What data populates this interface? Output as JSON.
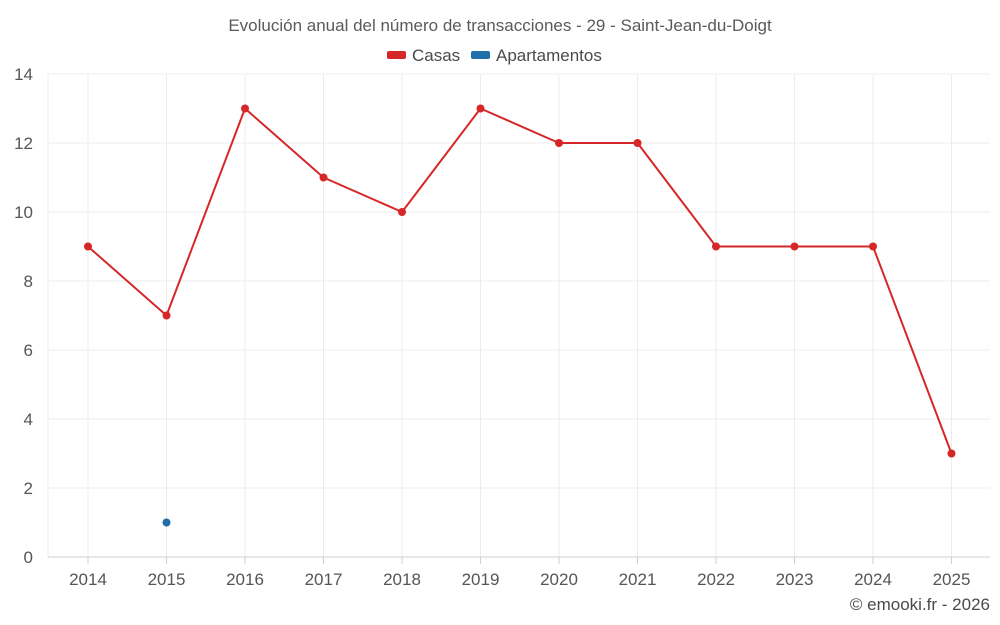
{
  "chart_data": {
    "type": "line",
    "title": "Evolución anual del número de transacciones - 29 - Saint-Jean-du-Doigt",
    "categories": [
      "2014",
      "2015",
      "2016",
      "2017",
      "2018",
      "2019",
      "2020",
      "2021",
      "2022",
      "2023",
      "2024",
      "2025"
    ],
    "series": [
      {
        "name": "Casas",
        "color": "#d62728",
        "values": [
          9,
          7,
          13,
          11,
          10,
          13,
          12,
          12,
          9,
          9,
          9,
          3
        ]
      },
      {
        "name": "Apartamentos",
        "color": "#1f6fa8",
        "values": [
          null,
          1,
          null,
          null,
          null,
          null,
          null,
          null,
          null,
          null,
          null,
          null
        ]
      }
    ],
    "yticks": [
      "0",
      "2",
      "4",
      "6",
      "8",
      "10",
      "12",
      "14"
    ],
    "ylim": [
      0,
      14
    ],
    "xlabel": "",
    "ylabel": "",
    "grid": true,
    "legend_position": "top-center"
  },
  "credit": "© emooki.fr - 2026"
}
